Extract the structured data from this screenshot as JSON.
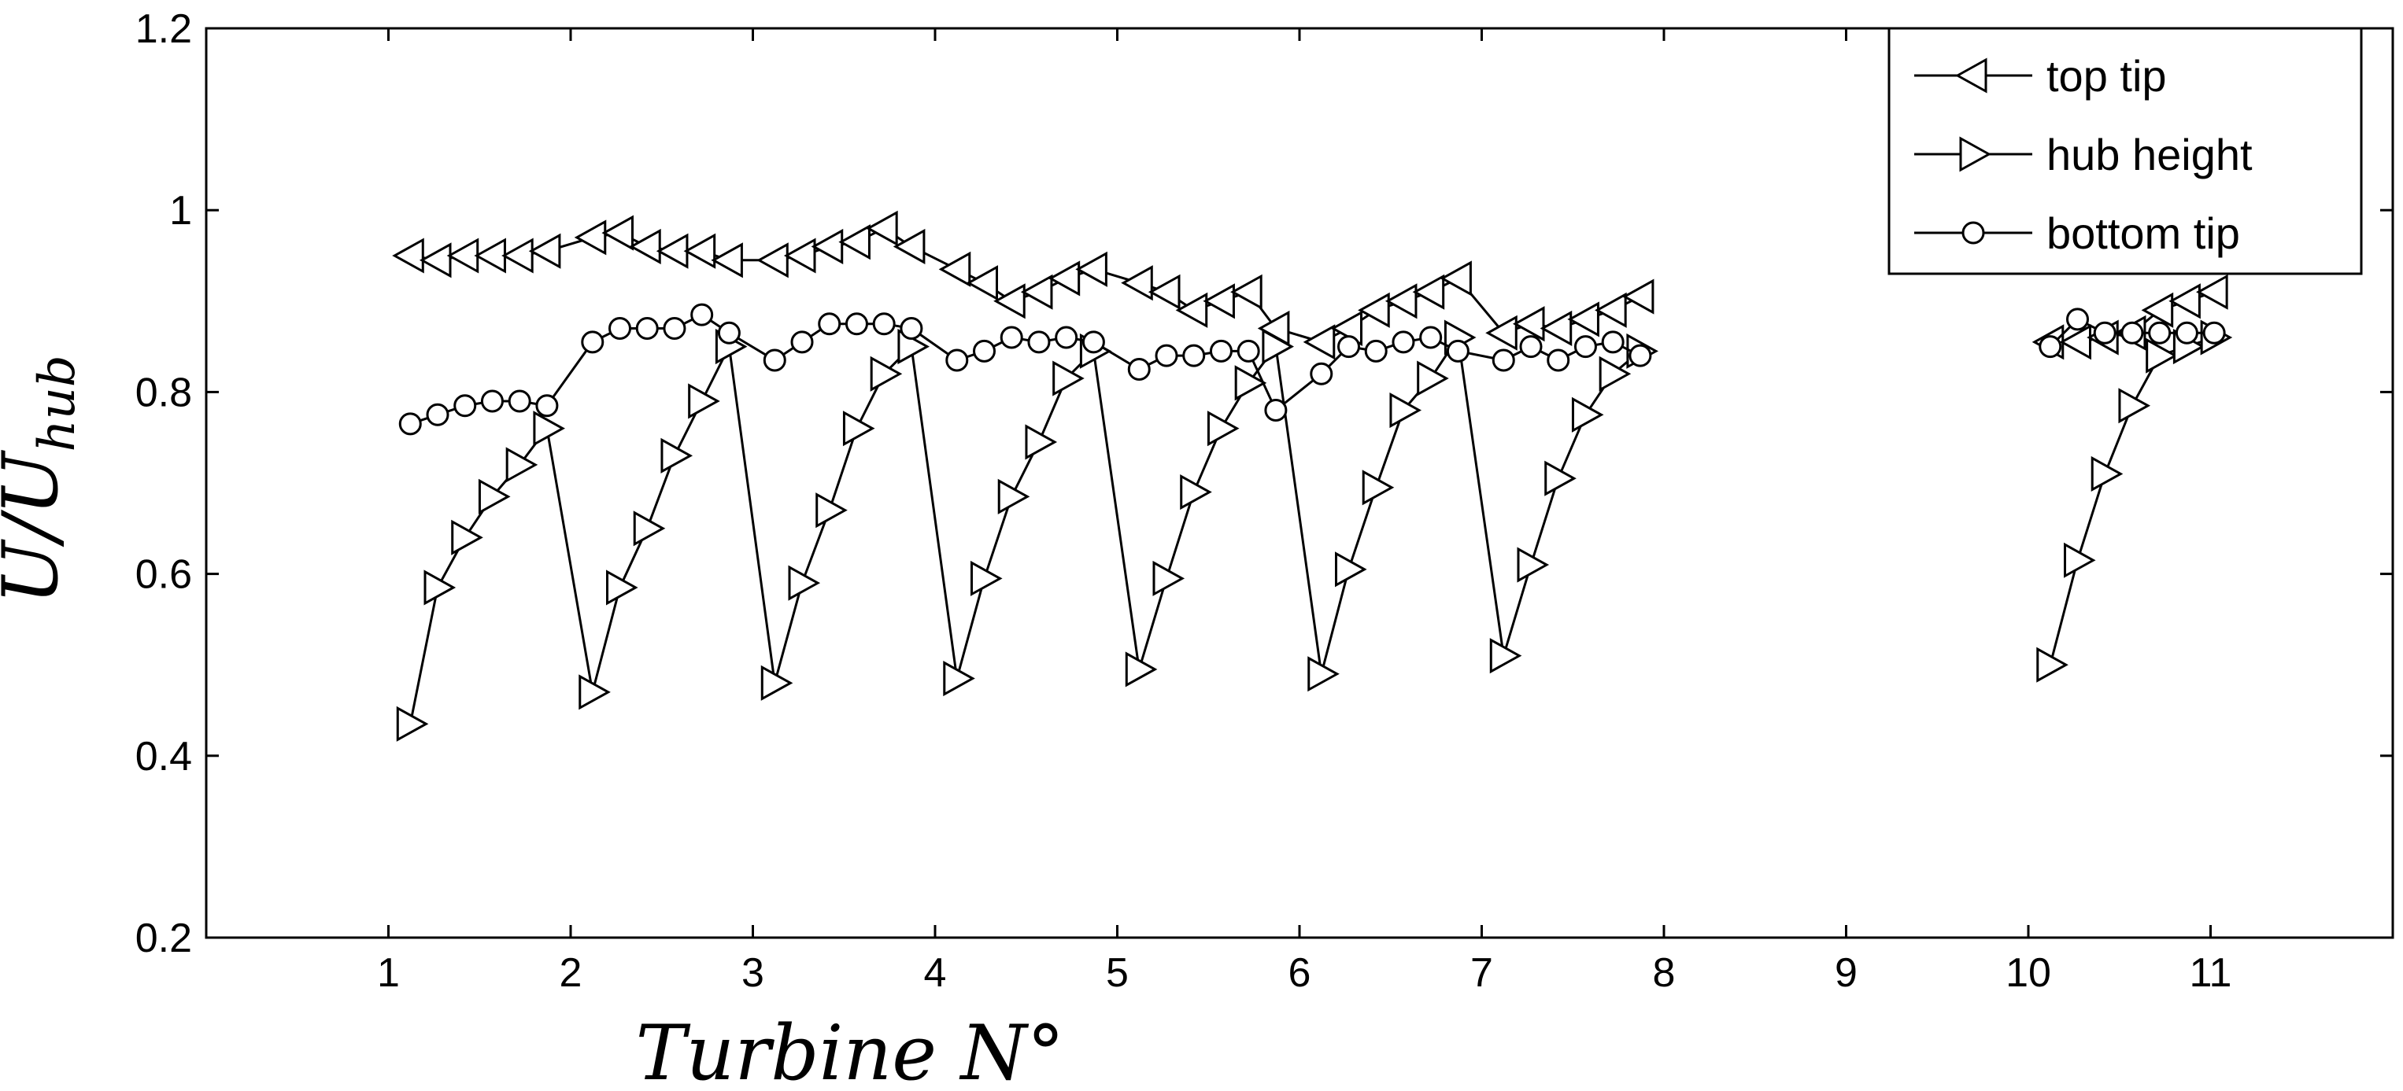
{
  "chart_data": {
    "type": "line",
    "xlabel": "Turbine N°",
    "ylabel": "U/U_hub",
    "ylabel_main": "U/U",
    "ylabel_sub": "hub",
    "xlim": [
      0,
      12
    ],
    "ylim": [
      0.2,
      1.2
    ],
    "xticks": [
      1,
      2,
      3,
      4,
      5,
      6,
      7,
      8,
      9,
      10,
      11
    ],
    "yticks": [
      0.2,
      0.4,
      0.6,
      0.8,
      1.0,
      1.2
    ],
    "ytick_labels": [
      "0.2",
      "0.4",
      "0.6",
      "0.8",
      "1",
      "1.2"
    ],
    "grid": false,
    "legend_position": "top-right",
    "series": [
      {
        "name": "top tip",
        "marker": "triangle-left",
        "x": [
          1.12,
          1.27,
          1.42,
          1.57,
          1.72,
          1.87,
          2.12,
          2.27,
          2.42,
          2.57,
          2.72,
          2.87,
          3.12,
          3.27,
          3.42,
          3.57,
          3.72,
          3.87,
          4.12,
          4.27,
          4.42,
          4.57,
          4.72,
          4.87,
          5.12,
          5.27,
          5.42,
          5.57,
          5.72,
          5.87,
          6.12,
          6.27,
          6.42,
          6.57,
          6.72,
          6.87,
          7.12,
          7.27,
          7.42,
          7.57,
          7.72,
          7.87,
          10.12,
          10.27,
          10.42,
          10.57,
          10.72,
          10.87,
          11.02
        ],
        "y": [
          0.95,
          0.945,
          0.95,
          0.95,
          0.95,
          0.955,
          0.97,
          0.975,
          0.96,
          0.955,
          0.955,
          0.945,
          0.945,
          0.95,
          0.96,
          0.965,
          0.98,
          0.96,
          0.935,
          0.92,
          0.9,
          0.91,
          0.925,
          0.935,
          0.92,
          0.91,
          0.89,
          0.9,
          0.91,
          0.87,
          0.855,
          0.87,
          0.89,
          0.9,
          0.91,
          0.925,
          0.865,
          0.875,
          0.87,
          0.88,
          0.89,
          0.905,
          0.855,
          0.855,
          0.86,
          0.865,
          0.89,
          0.9,
          0.91
        ]
      },
      {
        "name": "hub height",
        "marker": "triangle-right",
        "x": [
          1.12,
          1.27,
          1.42,
          1.57,
          1.72,
          1.87,
          2.12,
          2.27,
          2.42,
          2.57,
          2.72,
          2.87,
          3.12,
          3.27,
          3.42,
          3.57,
          3.72,
          3.87,
          4.12,
          4.27,
          4.42,
          4.57,
          4.72,
          4.87,
          5.12,
          5.27,
          5.42,
          5.57,
          5.72,
          5.87,
          6.12,
          6.27,
          6.42,
          6.57,
          6.72,
          6.87,
          7.12,
          7.27,
          7.42,
          7.57,
          7.72,
          7.87,
          10.12,
          10.27,
          10.42,
          10.57,
          10.72,
          10.87,
          11.02
        ],
        "y": [
          0.435,
          0.585,
          0.64,
          0.685,
          0.72,
          0.76,
          0.47,
          0.585,
          0.65,
          0.73,
          0.79,
          0.85,
          0.48,
          0.59,
          0.67,
          0.76,
          0.82,
          0.85,
          0.485,
          0.595,
          0.685,
          0.745,
          0.815,
          0.845,
          0.495,
          0.595,
          0.69,
          0.76,
          0.81,
          0.85,
          0.49,
          0.605,
          0.695,
          0.78,
          0.815,
          0.86,
          0.51,
          0.61,
          0.705,
          0.775,
          0.82,
          0.845,
          0.5,
          0.615,
          0.71,
          0.785,
          0.84,
          0.85,
          0.86
        ]
      },
      {
        "name": "bottom tip",
        "marker": "circle",
        "x": [
          1.12,
          1.27,
          1.42,
          1.57,
          1.72,
          1.87,
          2.12,
          2.27,
          2.42,
          2.57,
          2.72,
          2.87,
          3.12,
          3.27,
          3.42,
          3.57,
          3.72,
          3.87,
          4.12,
          4.27,
          4.42,
          4.57,
          4.72,
          4.87,
          5.12,
          5.27,
          5.42,
          5.57,
          5.72,
          5.87,
          6.12,
          6.27,
          6.42,
          6.57,
          6.72,
          6.87,
          7.12,
          7.27,
          7.42,
          7.57,
          7.72,
          7.87,
          10.12,
          10.27,
          10.42,
          10.57,
          10.72,
          10.87,
          11.02
        ],
        "y": [
          0.765,
          0.775,
          0.785,
          0.79,
          0.79,
          0.785,
          0.855,
          0.87,
          0.87,
          0.87,
          0.885,
          0.865,
          0.835,
          0.855,
          0.875,
          0.875,
          0.875,
          0.87,
          0.835,
          0.845,
          0.86,
          0.855,
          0.86,
          0.855,
          0.825,
          0.84,
          0.84,
          0.845,
          0.845,
          0.78,
          0.82,
          0.85,
          0.845,
          0.855,
          0.86,
          0.845,
          0.835,
          0.85,
          0.835,
          0.85,
          0.855,
          0.84,
          0.85,
          0.88,
          0.865,
          0.865,
          0.865,
          0.865,
          0.865
        ]
      }
    ]
  }
}
